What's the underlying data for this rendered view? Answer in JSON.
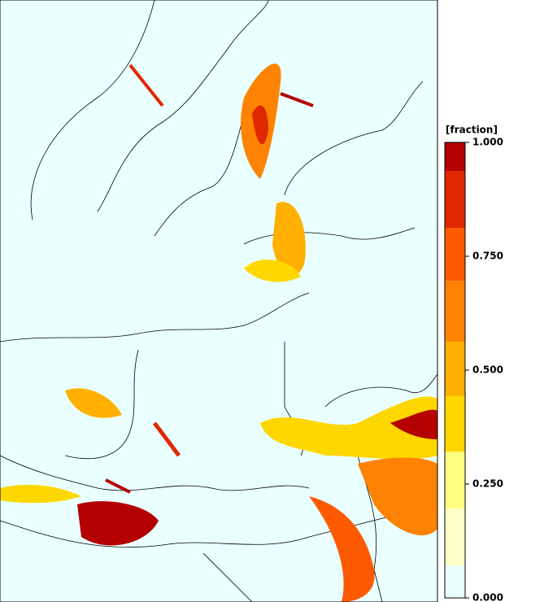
{
  "colorbar": {
    "title": "[fraction]",
    "ticks": [
      {
        "value": 1,
        "label": "1.000"
      },
      {
        "value": 0.75,
        "label": "0.750"
      },
      {
        "value": 0.5,
        "label": "0.500"
      },
      {
        "value": 0.25,
        "label": "0.250"
      },
      {
        "value": 0,
        "label": "0.000"
      }
    ],
    "lim": [
      0,
      1
    ],
    "levels": [
      0,
      0.071,
      0.196,
      0.321,
      0.443,
      0.5625,
      0.696,
      0.8125,
      0.9375,
      1
    ],
    "colors": [
      "#eaffff",
      "#ffffc8",
      "#ffff80",
      "#ffd700",
      "#ffb000",
      "#ff8200",
      "#ff5a00",
      "#e02800",
      "#b40000"
    ]
  }
}
